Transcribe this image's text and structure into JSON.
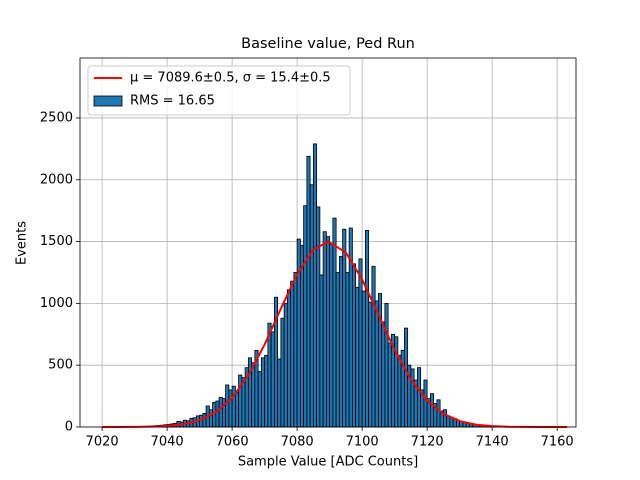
{
  "chart_data": {
    "type": "histogram",
    "title": "Baseline value, Ped Run",
    "x_label": "Sample Value [ADC Counts]",
    "y_label": "Events",
    "bins": [
      7020,
      7021,
      7022,
      7023,
      7024,
      7025,
      7026,
      7027,
      7028,
      7029,
      7030,
      7031,
      7032,
      7033,
      7034,
      7035,
      7036,
      7037,
      7038,
      7039,
      7040,
      7041,
      7042,
      7043,
      7044,
      7045,
      7046,
      7047,
      7048,
      7049,
      7050,
      7051,
      7052,
      7053,
      7054,
      7055,
      7056,
      7057,
      7058,
      7059,
      7060,
      7061,
      7062,
      7063,
      7064,
      7065,
      7066,
      7067,
      7068,
      7069,
      7070,
      7071,
      7072,
      7073,
      7074,
      7075,
      7076,
      7077,
      7078,
      7079,
      7080,
      7081,
      7082,
      7083,
      7084,
      7085,
      7086,
      7087,
      7088,
      7089,
      7090,
      7091,
      7092,
      7093,
      7094,
      7095,
      7096,
      7097,
      7098,
      7099,
      7100,
      7101,
      7102,
      7103,
      7104,
      7105,
      7106,
      7107,
      7108,
      7109,
      7110,
      7111,
      7112,
      7113,
      7114,
      7115,
      7116,
      7117,
      7118,
      7119,
      7120,
      7121,
      7122,
      7123,
      7124,
      7125,
      7126,
      7127,
      7128,
      7129,
      7130,
      7131,
      7132,
      7133,
      7134,
      7135,
      7136,
      7137,
      7138,
      7139,
      7140,
      7141,
      7142,
      7143,
      7144,
      7145,
      7146,
      7147,
      7148,
      7149,
      7150,
      7151,
      7152,
      7153,
      7154,
      7155,
      7156,
      7157,
      7158,
      7159,
      7160,
      7161,
      7162,
      7163,
      7164
    ],
    "series": [
      {
        "name": "RMS = 16.65",
        "color": "#1f77b4",
        "edgecolor": "#000000",
        "values": [
          0,
          0,
          0,
          0,
          1,
          1,
          1,
          2,
          2,
          3,
          3,
          4,
          5,
          6,
          7,
          9,
          11,
          13,
          15,
          18,
          20,
          25,
          30,
          45,
          40,
          55,
          50,
          70,
          75,
          90,
          95,
          110,
          170,
          140,
          200,
          210,
          240,
          230,
          340,
          300,
          330,
          280,
          420,
          400,
          480,
          560,
          520,
          620,
          450,
          560,
          580,
          840,
          770,
          1050,
          550,
          880,
          1000,
          1110,
          1180,
          1250,
          1520,
          1470,
          1790,
          2190,
          1960,
          2290,
          1780,
          1230,
          1580,
          1540,
          1480,
          1690,
          1250,
          1380,
          1600,
          1250,
          1610,
          1320,
          1130,
          1360,
          1100,
          1590,
          1010,
          1300,
          1020,
          1080,
          850,
          1000,
          680,
          750,
          730,
          580,
          620,
          800,
          500,
          470,
          380,
          480,
          300,
          380,
          230,
          270,
          190,
          220,
          130,
          140,
          90,
          80,
          70,
          55,
          45,
          40,
          30,
          28,
          22,
          20,
          14,
          12,
          10,
          8,
          7,
          6,
          5,
          4,
          3,
          3,
          2,
          2,
          1,
          1,
          1,
          1,
          1,
          0,
          0,
          0,
          0,
          0,
          0,
          0,
          0,
          0,
          0,
          0
        ]
      },
      {
        "name": "μ = 7089.6±0.5, σ = 15.4±0.5",
        "type": "line",
        "color": "#ff0000",
        "x": [
          7020,
          7025,
          7030,
          7035,
          7040,
          7045,
          7050,
          7055,
          7060,
          7065,
          7070,
          7075,
          7080,
          7085,
          7089.6,
          7095,
          7100,
          7105,
          7110,
          7115,
          7120,
          7125,
          7130,
          7135,
          7140,
          7145,
          7150,
          7155,
          7160,
          7163
        ],
        "values": [
          0,
          0.2,
          0.8,
          2.8,
          8.4,
          22.7,
          55,
          120,
          236,
          419,
          667,
          958,
          1235,
          1435,
          1500,
          1411,
          1194,
          910,
          624,
          385,
          214,
          107,
          48,
          19,
          7,
          2.3,
          0.7,
          0.2,
          0.05,
          0
        ]
      }
    ],
    "xlim": [
      7013.2,
      7165.8
    ],
    "ylim": [
      0,
      2985
    ],
    "xticks": [
      7020,
      7040,
      7060,
      7080,
      7100,
      7120,
      7140,
      7160
    ],
    "yticks": [
      0,
      500,
      1000,
      1500,
      2000,
      2500
    ],
    "grid": true,
    "legend": "upper left"
  }
}
